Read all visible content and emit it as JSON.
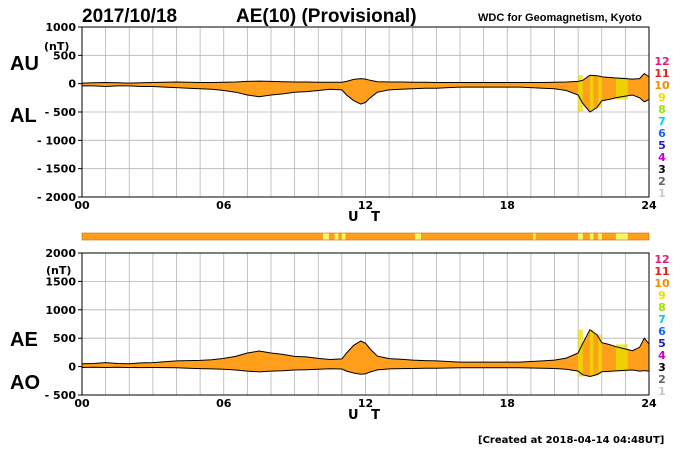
{
  "header": {
    "date": "2017/10/18",
    "index": "AE(10) (Provisional)",
    "source": "WDC for Geomagnetism, Kyoto"
  },
  "footer": {
    "created": "[Created at 2018-04-14 04:48UT]"
  },
  "colors": {
    "fill": "#ff9f1c",
    "outline": "#000000",
    "grid": "#b4b4b4",
    "highlight": "#e8e000",
    "pale": "#f5f56a"
  },
  "legend_levels": [
    {
      "label": "12",
      "color": "#e8197d"
    },
    {
      "label": "11",
      "color": "#e0201a"
    },
    {
      "label": "10",
      "color": "#f08c00"
    },
    {
      "label": "9",
      "color": "#e8e000"
    },
    {
      "label": "8",
      "color": "#9ae600"
    },
    {
      "label": "7",
      "color": "#00d2e6"
    },
    {
      "label": "6",
      "color": "#1a64ff"
    },
    {
      "label": "5",
      "color": "#2020c0"
    },
    {
      "label": "4",
      "color": "#c800d2"
    },
    {
      "label": "3",
      "color": "#000000"
    },
    {
      "label": "2",
      "color": "#646464"
    },
    {
      "label": "1",
      "color": "#c8c8c8"
    }
  ],
  "station_strip": {
    "xlim": [
      0,
      24
    ],
    "segments": [
      {
        "x0": 0,
        "x1": 10.2,
        "level": 10
      },
      {
        "x0": 10.2,
        "x1": 10.45,
        "level": 9
      },
      {
        "x0": 10.45,
        "x1": 10.7,
        "level": 10
      },
      {
        "x0": 10.7,
        "x1": 10.85,
        "level": 9
      },
      {
        "x0": 10.85,
        "x1": 11.0,
        "level": 10
      },
      {
        "x0": 11.0,
        "x1": 11.15,
        "level": 9
      },
      {
        "x0": 11.15,
        "x1": 14.1,
        "level": 10
      },
      {
        "x0": 14.1,
        "x1": 14.35,
        "level": 9
      },
      {
        "x0": 14.35,
        "x1": 19.1,
        "level": 10
      },
      {
        "x0": 19.1,
        "x1": 19.2,
        "level": 9
      },
      {
        "x0": 19.2,
        "x1": 21.0,
        "level": 10
      },
      {
        "x0": 21.0,
        "x1": 21.2,
        "level": 9
      },
      {
        "x0": 21.2,
        "x1": 21.5,
        "level": 10
      },
      {
        "x0": 21.5,
        "x1": 21.65,
        "level": 9
      },
      {
        "x0": 21.65,
        "x1": 21.85,
        "level": 10
      },
      {
        "x0": 21.85,
        "x1": 22.0,
        "level": 9
      },
      {
        "x0": 22.0,
        "x1": 22.6,
        "level": 10
      },
      {
        "x0": 22.6,
        "x1": 23.1,
        "level": 9
      },
      {
        "x0": 23.1,
        "x1": 24,
        "level": 10
      }
    ]
  },
  "chart_data": [
    {
      "type": "area",
      "panel": "AU/AL",
      "labels": [
        "AU",
        "AL"
      ],
      "unit": "(nT)",
      "xlabel": "U T",
      "xlim": [
        0,
        24
      ],
      "xticks": [
        "00",
        "06",
        "12",
        "18",
        "24"
      ],
      "ylim": [
        -2000,
        1000
      ],
      "yticks": [
        1000,
        500,
        0,
        -500,
        -1000,
        -1500,
        -2000
      ],
      "ytick_labels": [
        "1000",
        "500",
        "0",
        "- 500",
        "- 1000",
        "- 1500",
        "- 2000"
      ],
      "grid": true,
      "x": [
        0,
        0.5,
        1,
        1.5,
        2,
        2.5,
        3,
        3.5,
        4,
        4.5,
        5,
        5.5,
        6,
        6.5,
        7,
        7.5,
        8,
        8.5,
        9,
        9.5,
        10,
        10.5,
        11,
        11.2,
        11.5,
        11.8,
        12,
        12.2,
        12.5,
        13,
        13.5,
        14,
        14.5,
        15,
        15.5,
        16,
        16.5,
        17,
        17.5,
        18,
        18.5,
        19,
        19.5,
        20,
        20.5,
        21,
        21.2,
        21.5,
        21.8,
        22,
        22.3,
        22.6,
        23,
        23.3,
        23.6,
        23.8,
        24
      ],
      "series": [
        {
          "name": "AU",
          "values": [
            10,
            15,
            20,
            15,
            10,
            15,
            20,
            25,
            30,
            25,
            20,
            20,
            25,
            30,
            40,
            45,
            40,
            35,
            30,
            30,
            25,
            25,
            25,
            40,
            75,
            90,
            80,
            60,
            35,
            30,
            30,
            25,
            25,
            20,
            20,
            20,
            20,
            20,
            20,
            20,
            20,
            20,
            20,
            25,
            30,
            40,
            60,
            150,
            140,
            120,
            110,
            100,
            90,
            80,
            90,
            180,
            120
          ]
        },
        {
          "name": "AL",
          "values": [
            -40,
            -40,
            -50,
            -40,
            -40,
            -50,
            -50,
            -60,
            -70,
            -80,
            -90,
            -100,
            -120,
            -150,
            -200,
            -230,
            -200,
            -180,
            -150,
            -140,
            -120,
            -100,
            -110,
            -200,
            -300,
            -360,
            -330,
            -250,
            -150,
            -110,
            -100,
            -90,
            -80,
            -80,
            -70,
            -60,
            -60,
            -60,
            -60,
            -60,
            -60,
            -70,
            -80,
            -90,
            -120,
            -200,
            -350,
            -500,
            -420,
            -300,
            -280,
            -250,
            -220,
            -200,
            -250,
            -320,
            -280
          ]
        }
      ]
    },
    {
      "type": "area",
      "panel": "AE/AO",
      "labels": [
        "AE",
        "AO"
      ],
      "unit": "(nT)",
      "xlabel": "U T",
      "xlim": [
        0,
        24
      ],
      "xticks": [
        "00",
        "06",
        "12",
        "18",
        "24"
      ],
      "ylim": [
        -500,
        2000
      ],
      "yticks": [
        2000,
        1500,
        1000,
        500,
        0,
        -500
      ],
      "ytick_labels": [
        "2000",
        "1500",
        "1000",
        "500",
        "0",
        "- 500"
      ],
      "grid": true,
      "x": [
        0,
        0.5,
        1,
        1.5,
        2,
        2.5,
        3,
        3.5,
        4,
        4.5,
        5,
        5.5,
        6,
        6.5,
        7,
        7.5,
        8,
        8.5,
        9,
        9.5,
        10,
        10.5,
        11,
        11.2,
        11.5,
        11.8,
        12,
        12.2,
        12.5,
        13,
        13.5,
        14,
        14.5,
        15,
        15.5,
        16,
        16.5,
        17,
        17.5,
        18,
        18.5,
        19,
        19.5,
        20,
        20.5,
        21,
        21.2,
        21.5,
        21.8,
        22,
        22.3,
        22.6,
        23,
        23.3,
        23.6,
        23.8,
        24
      ],
      "series": [
        {
          "name": "AE",
          "values": [
            50,
            55,
            70,
            55,
            50,
            65,
            70,
            85,
            100,
            105,
            110,
            120,
            145,
            180,
            240,
            275,
            240,
            215,
            180,
            170,
            145,
            125,
            135,
            240,
            375,
            450,
            410,
            310,
            185,
            140,
            130,
            115,
            105,
            100,
            90,
            80,
            80,
            80,
            80,
            80,
            80,
            90,
            100,
            115,
            150,
            240,
            410,
            650,
            560,
            420,
            390,
            350,
            310,
            280,
            340,
            500,
            400
          ]
        },
        {
          "name": "AO",
          "values": [
            -15,
            -12,
            -15,
            -12,
            -15,
            -18,
            -15,
            -18,
            -20,
            -28,
            -35,
            -40,
            -48,
            -60,
            -80,
            -93,
            -80,
            -73,
            -60,
            -55,
            -48,
            -38,
            -43,
            -80,
            -113,
            -135,
            -125,
            -95,
            -58,
            -40,
            -35,
            -33,
            -28,
            -30,
            -25,
            -20,
            -20,
            -20,
            -20,
            -20,
            -20,
            -25,
            -30,
            -33,
            -45,
            -80,
            -145,
            -175,
            -140,
            -90,
            -85,
            -75,
            -65,
            -60,
            -80,
            -70,
            -80
          ]
        }
      ]
    }
  ]
}
